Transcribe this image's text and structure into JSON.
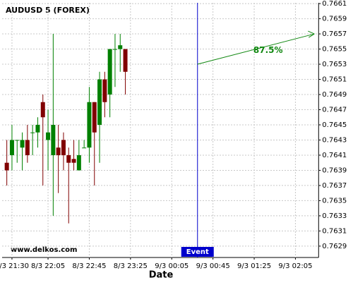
{
  "chart_data": {
    "type": "candlestick",
    "title": "AUDUSD 5 (FOREX)",
    "x_label": "Date",
    "watermark": "www.delkos.com",
    "categories": [
      null,
      "8/3 21:30",
      null,
      null,
      null,
      null,
      null,
      null,
      "8/3 22:05",
      null,
      null,
      null,
      null,
      null,
      null,
      null,
      "8/3 22:45",
      null,
      null,
      null,
      null,
      null,
      null,
      null,
      "8/3 23:25",
      null,
      null,
      null,
      null,
      null,
      null,
      null,
      "9/3 00:05",
      null,
      null,
      null,
      null,
      null,
      null,
      null,
      "9/3 00:45",
      null,
      null,
      null,
      null,
      null,
      null,
      null,
      "9/3 01:25",
      null,
      null,
      null,
      null,
      null,
      null,
      null,
      "9/3 02:05",
      null,
      null,
      null,
      null
    ],
    "open": [
      0.764,
      0.7641,
      0.7643,
      0.7642,
      0.7643,
      0.7644,
      0.7644,
      0.7648,
      0.7643,
      0.7641,
      0.7642,
      0.7643,
      0.7641,
      0.76405,
      0.7639,
      0.7642,
      0.7642,
      0.7648,
      0.7645,
      0.7651,
      0.7649,
      0.7655,
      0.7655,
      0.7655,
      null,
      null,
      null,
      null,
      null,
      null,
      null,
      null,
      null,
      null,
      null,
      null,
      null,
      null,
      null,
      null,
      null,
      null,
      null,
      null,
      null,
      null,
      null,
      null,
      null,
      null,
      null,
      null,
      null,
      null,
      null,
      null,
      null,
      null,
      null,
      null,
      null
    ],
    "high": [
      0.7643,
      0.7645,
      0.7643,
      0.7644,
      0.7645,
      0.7645,
      0.7646,
      0.7649,
      0.7647,
      0.7657,
      0.7645,
      0.7644,
      0.7642,
      0.7643,
      0.7643,
      0.7643,
      0.765,
      0.7648,
      0.7652,
      0.7652,
      0.7655,
      0.7657,
      0.7657,
      0.7655,
      null,
      null,
      null,
      null,
      null,
      null,
      null,
      null,
      null,
      null,
      null,
      null,
      null,
      null,
      null,
      null,
      null,
      null,
      null,
      null,
      null,
      null,
      null,
      null,
      null,
      null,
      null,
      null,
      null,
      null,
      null,
      null,
      null,
      null,
      null,
      null,
      null
    ],
    "low": [
      0.7637,
      0.7639,
      0.764,
      0.7639,
      0.764,
      0.7641,
      0.7642,
      0.7637,
      0.7639,
      0.7633,
      0.7636,
      0.7639,
      0.7632,
      0.7639,
      0.7639,
      0.7642,
      0.764,
      0.7637,
      0.764,
      0.7646,
      0.7646,
      0.765,
      0.7652,
      0.7649,
      null,
      null,
      null,
      null,
      null,
      null,
      null,
      null,
      null,
      null,
      null,
      null,
      null,
      null,
      null,
      null,
      null,
      null,
      null,
      null,
      null,
      null,
      null,
      null,
      null,
      null,
      null,
      null,
      null,
      null,
      null,
      null,
      null,
      null,
      null,
      null,
      null
    ],
    "close": [
      0.7639,
      0.7643,
      0.7643,
      0.7643,
      0.7641,
      0.7644,
      0.7645,
      0.7646,
      0.7644,
      0.7645,
      0.7641,
      0.7641,
      0.764,
      0.764,
      0.7641,
      0.7642,
      0.7648,
      0.7644,
      0.7651,
      0.7648,
      0.7655,
      0.7655,
      0.76555,
      0.7652,
      null,
      null,
      null,
      null,
      null,
      null,
      null,
      null,
      null,
      null,
      null,
      null,
      null,
      null,
      null,
      null,
      null,
      null,
      null,
      null,
      null,
      null,
      null,
      null,
      null,
      null,
      null,
      null,
      null,
      null,
      null,
      null,
      null,
      null,
      null,
      null,
      null
    ],
    "up_color": "#008000",
    "down_color": "#800000",
    "ylim": [
      0.76275,
      0.76611
    ],
    "yticks": [
      0.7629,
      0.7631,
      0.7633,
      0.7635,
      0.7637,
      0.7639,
      0.7641,
      0.7643,
      0.7645,
      0.7647,
      0.7649,
      0.7651,
      0.7653,
      0.7655,
      0.7657,
      0.7659,
      0.7661
    ],
    "grid": true,
    "event": {
      "label": "Event",
      "at": 37,
      "color": "#0000cc"
    },
    "projection": {
      "label": "87.5%",
      "from": 0.7653,
      "to": 0.7657,
      "color": "#118811"
    }
  }
}
